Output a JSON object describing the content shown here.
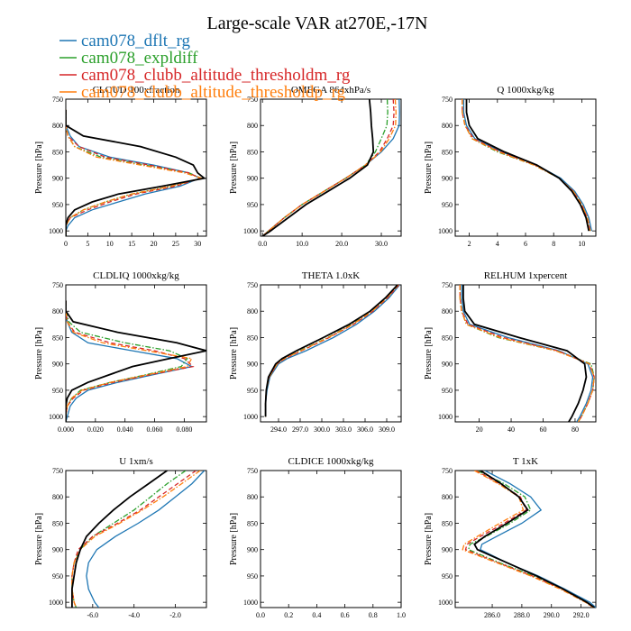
{
  "figure": {
    "title": "Large-scale VAR at270E,-17N",
    "ylabel": "Pressure [hPa]"
  },
  "legend": [
    {
      "name": "cam078_dflt_rg",
      "color": "#1f77b4",
      "dash": "solid"
    },
    {
      "name": "cam078_expldiff",
      "color": "#2ca02c",
      "dash": "dashdot"
    },
    {
      "name": "cam078_clubb_altitude_thresholdm_rg",
      "color": "#d62728",
      "dash": "dash"
    },
    {
      "name": "cam078_clubb_altitude_thresholdp_rg",
      "color": "#ff7f0e",
      "dash": "dashdot"
    }
  ],
  "reference_line": {
    "color": "#000000"
  },
  "chart_data": [
    {
      "type": "line",
      "title": "CLOUD 100xfraction",
      "ylabel": "Pressure [hPa]",
      "xlim": [
        0,
        32
      ],
      "ylim": [
        750,
        1010
      ],
      "y_inverted": true,
      "xticks": [
        0,
        5,
        10,
        15,
        20,
        25,
        30
      ],
      "xtick_labels": [
        "0",
        "5",
        "10",
        "15",
        "20",
        "25",
        "30"
      ],
      "yticks": [
        750,
        800,
        850,
        900,
        950,
        1000
      ],
      "p": [
        770,
        800,
        820,
        840,
        860,
        875,
        890,
        900,
        915,
        930,
        945,
        960,
        975,
        990,
        1000,
        1010
      ],
      "ref": [
        0,
        0,
        4,
        17,
        25,
        29,
        30,
        31.5,
        22,
        12,
        6,
        2,
        0.5,
        0,
        0,
        0
      ],
      "series": [
        {
          "name": "cam078_dflt_rg",
          "values": [
            0,
            0,
            1,
            3,
            10,
            20,
            28,
            30.5,
            26,
            18,
            12,
            6,
            2,
            0.5,
            0,
            0
          ]
        },
        {
          "name": "cam078_expldiff",
          "values": [
            0,
            0,
            0.5,
            2,
            8,
            18,
            28,
            30.8,
            24,
            15,
            9,
            4,
            1,
            0,
            0,
            0
          ]
        },
        {
          "name": "cam078_clubb_altitude_thresholdm_rg",
          "values": [
            0,
            0,
            0.5,
            3,
            9,
            19,
            28,
            30.6,
            25,
            16,
            10,
            5,
            1,
            0,
            0,
            0
          ]
        },
        {
          "name": "cam078_clubb_altitude_thresholdp_rg",
          "values": [
            0,
            0,
            0.5,
            2,
            7,
            17,
            27,
            30.9,
            24,
            15,
            9,
            4,
            1,
            0,
            0,
            0
          ]
        }
      ]
    },
    {
      "type": "line",
      "title": "OMEGA 864xhPa/s",
      "ylabel": "Pressure [hPa]",
      "xlim": [
        -0.5,
        35
      ],
      "ylim": [
        750,
        1010
      ],
      "y_inverted": true,
      "xticks": [
        0,
        10,
        20,
        30
      ],
      "xtick_labels": [
        "0.0",
        "10.0",
        "20.0",
        "30.0"
      ],
      "yticks": [
        750,
        800,
        850,
        900,
        950,
        1000
      ],
      "p": [
        750,
        775,
        800,
        825,
        850,
        875,
        900,
        925,
        950,
        975,
        1000,
        1010
      ],
      "ref": [
        27,
        27.3,
        27.5,
        27.8,
        28,
        26.5,
        22,
        16.5,
        11,
        6.5,
        2,
        0
      ],
      "series": [
        {
          "name": "cam078_dflt_rg",
          "values": [
            34.5,
            34.6,
            34.5,
            33,
            30,
            26,
            21,
            15.5,
            10,
            5.5,
            1.5,
            0
          ]
        },
        {
          "name": "cam078_expldiff",
          "values": [
            31.5,
            31.6,
            31.4,
            30,
            28.5,
            26,
            21,
            15.5,
            10,
            5.5,
            1.5,
            0
          ]
        },
        {
          "name": "cam078_clubb_altitude_thresholdm_rg",
          "values": [
            33,
            33.2,
            33,
            31.5,
            29.5,
            26,
            21,
            15.5,
            10,
            5.5,
            1.5,
            0
          ]
        },
        {
          "name": "cam078_clubb_altitude_thresholdp_rg",
          "values": [
            33.5,
            33.7,
            33.6,
            32,
            29.8,
            26,
            21,
            15.5,
            10,
            5.5,
            1.5,
            0
          ]
        }
      ]
    },
    {
      "type": "line",
      "title": "Q 1000xkg/kg",
      "ylabel": "Pressure [hPa]",
      "xlim": [
        1,
        11
      ],
      "ylim": [
        750,
        1010
      ],
      "y_inverted": true,
      "xticks": [
        2,
        4,
        6,
        8,
        10
      ],
      "xtick_labels": [
        "2",
        "4",
        "6",
        "8",
        "10"
      ],
      "yticks": [
        750,
        800,
        850,
        900,
        950,
        1000
      ],
      "p": [
        750,
        775,
        800,
        825,
        850,
        875,
        900,
        925,
        950,
        975,
        1000
      ],
      "ref": [
        1.8,
        1.8,
        2.0,
        2.6,
        4.5,
        6.8,
        8.4,
        9.3,
        9.9,
        10.3,
        10.5
      ],
      "series": [
        {
          "name": "cam078_dflt_rg",
          "values": [
            1.6,
            1.6,
            1.8,
            2.4,
            4.3,
            6.8,
            8.5,
            9.5,
            10.1,
            10.5,
            10.7
          ]
        },
        {
          "name": "cam078_expldiff",
          "values": [
            1.5,
            1.5,
            1.7,
            2.2,
            4.0,
            6.6,
            8.4,
            9.4,
            10.0,
            10.4,
            10.6
          ]
        },
        {
          "name": "cam078_clubb_altitude_thresholdm_rg",
          "values": [
            1.5,
            1.5,
            1.7,
            2.3,
            4.2,
            6.7,
            8.4,
            9.4,
            10.0,
            10.4,
            10.6
          ]
        },
        {
          "name": "cam078_clubb_altitude_thresholdp_rg",
          "values": [
            1.5,
            1.5,
            1.7,
            2.2,
            4.1,
            6.6,
            8.4,
            9.4,
            10.0,
            10.4,
            10.6
          ]
        }
      ]
    },
    {
      "type": "line",
      "title": "CLDLIQ 1000xkg/kg",
      "ylabel": "Pressure [hPa]",
      "xlim": [
        0,
        0.095
      ],
      "ylim": [
        750,
        1010
      ],
      "y_inverted": true,
      "xticks": [
        0,
        0.02,
        0.04,
        0.06,
        0.08
      ],
      "xtick_labels": [
        "0.000",
        "0.020",
        "0.040",
        "0.060",
        "0.080"
      ],
      "yticks": [
        750,
        800,
        850,
        900,
        950,
        1000
      ],
      "p": [
        780,
        800,
        820,
        840,
        860,
        875,
        890,
        905,
        920,
        935,
        950,
        965,
        980,
        1000,
        1010
      ],
      "ref": [
        0,
        0,
        0.005,
        0.035,
        0.075,
        0.095,
        0.07,
        0.045,
        0.03,
        0.015,
        0.004,
        0.001,
        0,
        0,
        0
      ],
      "series": [
        {
          "name": "cam078_dflt_rg",
          "values": [
            0,
            0,
            0.001,
            0.004,
            0.015,
            0.045,
            0.075,
            0.085,
            0.06,
            0.035,
            0.015,
            0.007,
            0.003,
            0.001,
            0
          ]
        },
        {
          "name": "cam078_expldiff",
          "values": [
            0,
            0,
            0.002,
            0.01,
            0.04,
            0.07,
            0.082,
            0.078,
            0.055,
            0.03,
            0.01,
            0.004,
            0.001,
            0,
            0
          ]
        },
        {
          "name": "cam078_clubb_altitude_thresholdm_rg",
          "values": [
            0,
            0,
            0.001,
            0.006,
            0.03,
            0.06,
            0.08,
            0.086,
            0.058,
            0.032,
            0.012,
            0.005,
            0.001,
            0,
            0
          ]
        },
        {
          "name": "cam078_clubb_altitude_thresholdp_rg",
          "values": [
            0,
            0,
            0.001,
            0.005,
            0.025,
            0.055,
            0.085,
            0.082,
            0.056,
            0.03,
            0.011,
            0.004,
            0.001,
            0,
            0
          ]
        }
      ]
    },
    {
      "type": "line",
      "title": "THETA 1.0xK",
      "ylabel": "Pressure [hPa]",
      "xlim": [
        291.5,
        311
      ],
      "ylim": [
        750,
        1010
      ],
      "y_inverted": true,
      "xticks": [
        294,
        297,
        300,
        303,
        306,
        309
      ],
      "xtick_labels": [
        "294.0",
        "297.0",
        "300.0",
        "303.0",
        "306.0",
        "309.0"
      ],
      "yticks": [
        750,
        800,
        850,
        900,
        950,
        1000
      ],
      "p": [
        750,
        775,
        800,
        825,
        850,
        875,
        890,
        900,
        925,
        950,
        975,
        1000
      ],
      "ref": [
        310.5,
        308.8,
        306.7,
        303.8,
        300.2,
        296.5,
        294.5,
        293.6,
        292.6,
        292.3,
        292.2,
        292.2
      ],
      "series": [
        {
          "name": "cam078_dflt_rg",
          "values": [
            310.8,
            309.3,
            307.3,
            304.8,
            301.6,
            297.8,
            295.2,
            294.0,
            292.8,
            292.4,
            292.2,
            292.2
          ]
        },
        {
          "name": "cam078_expldiff",
          "values": [
            310.6,
            309.0,
            307.0,
            304.2,
            300.8,
            297.0,
            294.8,
            293.8,
            292.7,
            292.3,
            292.2,
            292.2
          ]
        },
        {
          "name": "cam078_clubb_altitude_thresholdm_rg",
          "values": [
            310.7,
            309.1,
            307.1,
            304.4,
            301.0,
            297.2,
            294.9,
            293.8,
            292.7,
            292.3,
            292.2,
            292.2
          ]
        },
        {
          "name": "cam078_clubb_altitude_thresholdp_rg",
          "values": [
            310.6,
            309.0,
            307.0,
            304.3,
            300.9,
            297.1,
            294.8,
            293.8,
            292.7,
            292.3,
            292.2,
            292.2
          ]
        }
      ]
    },
    {
      "type": "line",
      "title": "RELHUM 1xpercent",
      "ylabel": "Pressure [hPa]",
      "xlim": [
        5,
        93
      ],
      "ylim": [
        750,
        1010
      ],
      "y_inverted": true,
      "xticks": [
        20,
        40,
        60,
        80
      ],
      "xtick_labels": [
        "20",
        "40",
        "60",
        "80"
      ],
      "yticks": [
        750,
        800,
        850,
        900,
        950,
        1000
      ],
      "p": [
        750,
        775,
        800,
        825,
        850,
        875,
        900,
        925,
        950,
        975,
        1000,
        1010
      ],
      "ref": [
        10,
        10,
        11,
        17,
        45,
        75,
        86,
        87,
        85,
        82,
        78,
        76
      ],
      "series": [
        {
          "name": "cam078_dflt_rg",
          "values": [
            9,
            9,
            10,
            14,
            38,
            70,
            88,
            91,
            90,
            87,
            83,
            81
          ]
        },
        {
          "name": "cam078_expldiff",
          "values": [
            8,
            8,
            9,
            12,
            32,
            68,
            90,
            92,
            91,
            88,
            84,
            82
          ]
        },
        {
          "name": "cam078_clubb_altitude_thresholdm_rg",
          "values": [
            8,
            8,
            9,
            13,
            35,
            69,
            89,
            92,
            91,
            88,
            84,
            82
          ]
        },
        {
          "name": "cam078_clubb_altitude_thresholdp_rg",
          "values": [
            8,
            8,
            9,
            12,
            33,
            68,
            89,
            92,
            91,
            88,
            84,
            82
          ]
        }
      ]
    },
    {
      "type": "line",
      "title": "U 1xm/s",
      "ylabel": "Pressure [hPa]",
      "xlim": [
        -7.3,
        -0.5
      ],
      "ylim": [
        750,
        1010
      ],
      "y_inverted": true,
      "xticks": [
        -6,
        -4,
        -2
      ],
      "xtick_labels": [
        "-6.0",
        "-4.0",
        "-2.0"
      ],
      "yticks": [
        750,
        800,
        850,
        900,
        950,
        1000
      ],
      "p": [
        750,
        775,
        800,
        825,
        850,
        875,
        900,
        925,
        950,
        975,
        1000,
        1010
      ],
      "ref": [
        -2.4,
        -3.3,
        -4.2,
        -5.0,
        -5.7,
        -6.3,
        -6.6,
        -6.8,
        -6.9,
        -7.0,
        -7.0,
        -7.0
      ],
      "series": [
        {
          "name": "cam078_dflt_rg",
          "values": [
            -0.6,
            -1.2,
            -2.0,
            -2.8,
            -3.8,
            -4.9,
            -5.8,
            -6.2,
            -6.3,
            -6.2,
            -5.9,
            -5.7
          ]
        },
        {
          "name": "cam078_expldiff",
          "values": [
            -1.5,
            -2.4,
            -3.2,
            -4.0,
            -5.0,
            -6.0,
            -6.6,
            -6.9,
            -7.0,
            -7.0,
            -6.9,
            -6.8
          ]
        },
        {
          "name": "cam078_clubb_altitude_thresholdm_rg",
          "values": [
            -1.0,
            -1.9,
            -2.8,
            -3.7,
            -4.8,
            -6.0,
            -6.7,
            -6.9,
            -7.0,
            -7.0,
            -6.9,
            -6.8
          ]
        },
        {
          "name": "cam078_clubb_altitude_thresholdp_rg",
          "values": [
            -0.8,
            -1.7,
            -2.6,
            -3.6,
            -4.7,
            -5.9,
            -6.6,
            -6.9,
            -7.0,
            -7.0,
            -6.9,
            -6.8
          ]
        }
      ]
    },
    {
      "type": "line",
      "title": "CLDICE 1000xkg/kg",
      "ylabel": "Pressure [hPa]",
      "xlim": [
        0,
        1
      ],
      "ylim": [
        750,
        1010
      ],
      "y_inverted": true,
      "xticks": [
        0,
        0.2,
        0.4,
        0.6,
        0.8,
        1.0
      ],
      "xtick_labels": [
        "0.0",
        "0.2",
        "0.4",
        "0.6",
        "0.8",
        "1.0"
      ],
      "yticks": [
        750,
        800,
        850,
        900,
        950,
        1000
      ],
      "p": [],
      "ref": [],
      "series": []
    },
    {
      "type": "line",
      "title": "T 1xK",
      "ylabel": "Pressure [hPa]",
      "xlim": [
        283.5,
        293
      ],
      "ylim": [
        750,
        1010
      ],
      "y_inverted": true,
      "xticks": [
        286,
        288,
        290,
        292
      ],
      "xtick_labels": [
        "286.0",
        "288.0",
        "290.0",
        "292.0"
      ],
      "yticks": [
        750,
        800,
        850,
        900,
        950,
        1000
      ],
      "p": [
        750,
        775,
        800,
        825,
        850,
        875,
        890,
        900,
        925,
        950,
        975,
        1000,
        1010
      ],
      "ref": [
        285.2,
        286.6,
        287.8,
        288.4,
        287.0,
        285.5,
        284.8,
        285.0,
        287.0,
        289.0,
        290.8,
        292.4,
        292.9
      ],
      "series": [
        {
          "name": "cam078_dflt_rg",
          "values": [
            285.5,
            287.2,
            288.6,
            289.3,
            288.0,
            286.3,
            285.3,
            285.2,
            287.0,
            289.1,
            290.9,
            292.6,
            293.0
          ]
        },
        {
          "name": "cam078_expldiff",
          "values": [
            285.0,
            286.8,
            288.2,
            288.6,
            287.2,
            285.6,
            284.5,
            284.4,
            286.5,
            288.8,
            290.7,
            292.4,
            292.8
          ]
        },
        {
          "name": "cam078_clubb_altitude_thresholdm_rg",
          "values": [
            284.9,
            286.5,
            287.9,
            288.3,
            286.8,
            285.2,
            284.3,
            284.2,
            286.4,
            288.7,
            290.7,
            292.4,
            292.8
          ]
        },
        {
          "name": "cam078_clubb_altitude_thresholdp_rg",
          "values": [
            284.8,
            286.4,
            287.8,
            288.1,
            286.5,
            285.0,
            284.1,
            284.0,
            286.3,
            288.6,
            290.6,
            292.3,
            292.8
          ]
        }
      ]
    }
  ]
}
